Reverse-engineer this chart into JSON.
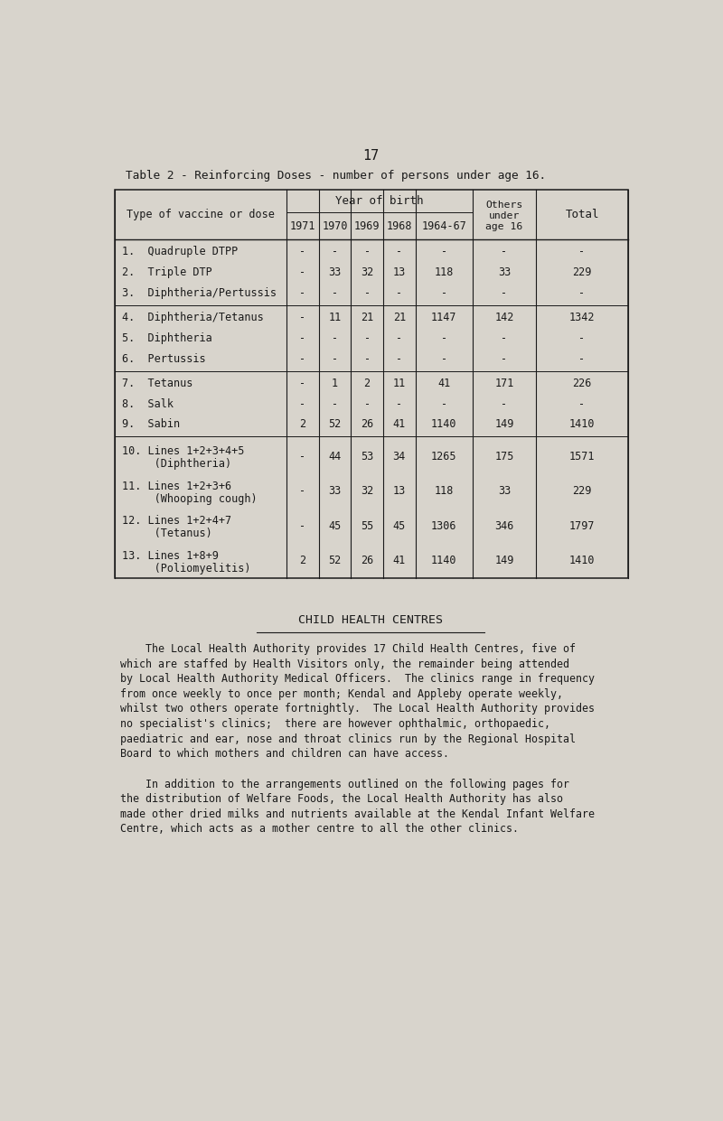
{
  "page_number": "17",
  "table_title": "Table 2 - Reinforcing Doses - number of persons under age 16.",
  "bg_color": "#d8d4cc",
  "text_color": "#1a1a1a",
  "rows": [
    [
      "1.  Quadruple DTPP",
      "-",
      "-",
      "-",
      "-",
      "-",
      "-",
      "-"
    ],
    [
      "2.  Triple DTP",
      "-",
      "33",
      "32",
      "13",
      "118",
      "33",
      "229"
    ],
    [
      "3.  Diphtheria/Pertussis",
      "-",
      "-",
      "-",
      "-",
      "-",
      "-",
      "-"
    ],
    [
      "4.  Diphtheria/Tetanus",
      "-",
      "11",
      "21",
      "21",
      "1147",
      "142",
      "1342"
    ],
    [
      "5.  Diphtheria",
      "-",
      "-",
      "-",
      "-",
      "-",
      "-",
      "-"
    ],
    [
      "6.  Pertussis",
      "-",
      "-",
      "-",
      "-",
      "-",
      "-",
      "-"
    ],
    [
      "7.  Tetanus",
      "-",
      "1",
      "2",
      "11",
      "41",
      "171",
      "226"
    ],
    [
      "8.  Salk",
      "-",
      "-",
      "-",
      "-",
      "-",
      "-",
      "-"
    ],
    [
      "9.  Sabin",
      "2",
      "52",
      "26",
      "41",
      "1140",
      "149",
      "1410"
    ],
    [
      "10. Lines 1+2+3+4+5\n     (Diphtheria)",
      "-",
      "44",
      "53",
      "34",
      "1265",
      "175",
      "1571"
    ],
    [
      "11. Lines 1+2+3+6\n     (Whooping cough)",
      "-",
      "33",
      "32",
      "13",
      "118",
      "33",
      "229"
    ],
    [
      "12. Lines 1+2+4+7\n     (Tetanus)",
      "-",
      "45",
      "55",
      "45",
      "1306",
      "346",
      "1797"
    ],
    [
      "13. Lines 1+8+9\n     (Poliomyelitis)",
      "2",
      "52",
      "26",
      "41",
      "1140",
      "149",
      "1410"
    ]
  ],
  "section_title": "CHILD HEALTH CENTRES",
  "paragraph1": "    The Local Health Authority provides 17 Child Health Centres, five of\nwhich are staffed by Health Visitors only, the remainder being attended\nby Local Health Authority Medical Officers.  The clinics range in frequency\nfrom once weekly to once per month; Kendal and Appleby operate weekly,\nwhilst two others operate fortnightly.  The Local Health Authority provides\nno specialist's clinics;  there are however ophthalmic, orthopaedic,\npaediatric and ear, nose and throat clinics run by the Regional Hospital\nBoard to which mothers and children can have access.",
  "paragraph2": "    In addition to the arrangements outlined on the following pages for\nthe distribution of Welfare Foods, the Local Health Authority has also\nmade other dried milks and nutrients available at the Kendal Infant Welfare\nCentre, which acts as a mother centre to all the other clinics."
}
